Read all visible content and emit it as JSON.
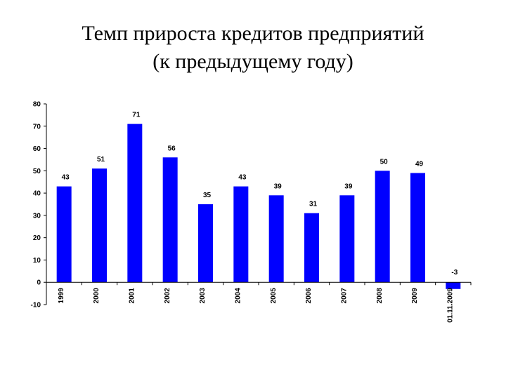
{
  "title_line1": "Темп прироста кредитов предприятий",
  "title_line2": "(к предыдущему году)",
  "colors": {
    "bar": "#0000ff",
    "axis": "#000000"
  },
  "chart_data": {
    "type": "bar",
    "categories": [
      "1999",
      "2000",
      "2001",
      "2002",
      "2003",
      "2004",
      "2005",
      "2006",
      "2007",
      "2008",
      "2009",
      "01.11.2009"
    ],
    "values": [
      43,
      51,
      71,
      56,
      35,
      43,
      39,
      31,
      39,
      50,
      49,
      -3
    ],
    "data_labels": [
      "43",
      "51",
      "71",
      "56",
      "35",
      "43",
      "39",
      "31",
      "39",
      "50",
      "49",
      "-3"
    ],
    "ylim": [
      -10,
      80
    ],
    "yticks": [
      -10,
      0,
      10,
      20,
      30,
      40,
      50,
      60,
      70,
      80
    ],
    "grid": false,
    "legend": false
  }
}
